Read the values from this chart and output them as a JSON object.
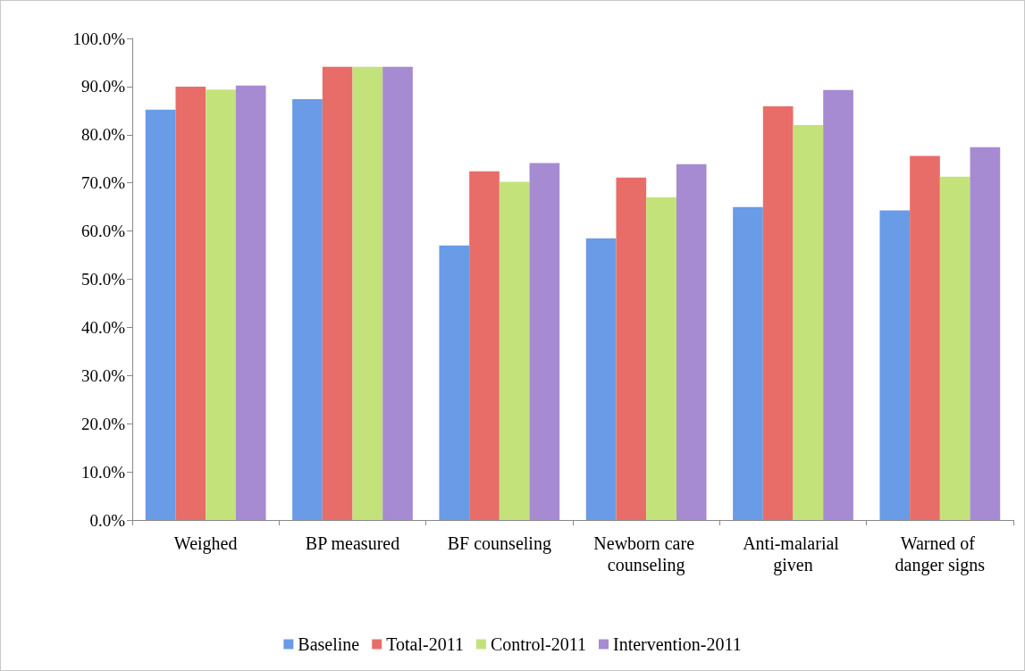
{
  "chart_data": {
    "type": "bar",
    "categories": [
      "Weighed",
      "BP measured",
      "BF counseling",
      "Newborn care counseling",
      "Anti-malarial given",
      "Warned of danger signs"
    ],
    "series": [
      {
        "name": "Baseline",
        "color": "#6a9be6",
        "values": [
          85.2,
          87.4,
          57.0,
          58.5,
          65.0,
          64.3
        ]
      },
      {
        "name": "Total-2011",
        "color": "#e86d69",
        "values": [
          90.0,
          94.1,
          72.4,
          71.1,
          85.9,
          75.6
        ]
      },
      {
        "name": "Control-2011",
        "color": "#c3e37a",
        "values": [
          89.4,
          94.1,
          70.2,
          67.0,
          82.0,
          71.3
        ]
      },
      {
        "name": "Intervention-2011",
        "color": "#a68bd2",
        "values": [
          90.2,
          94.1,
          74.1,
          73.9,
          89.3,
          77.4
        ]
      }
    ],
    "ylim": [
      0,
      100
    ],
    "yticks": [
      {
        "value": 0,
        "label": "0.0%"
      },
      {
        "value": 10,
        "label": "10.0%"
      },
      {
        "value": 20,
        "label": "20.0%"
      },
      {
        "value": 30,
        "label": "30.0%"
      },
      {
        "value": 40,
        "label": "40.0%"
      },
      {
        "value": 50,
        "label": "50.0%"
      },
      {
        "value": 60,
        "label": "60.0%"
      },
      {
        "value": 70,
        "label": "70.0%"
      },
      {
        "value": 80,
        "label": "80.0%"
      },
      {
        "value": 90,
        "label": "90.0%"
      },
      {
        "value": 100,
        "label": "100.0%"
      }
    ],
    "grid": false,
    "legend": "bottom"
  }
}
